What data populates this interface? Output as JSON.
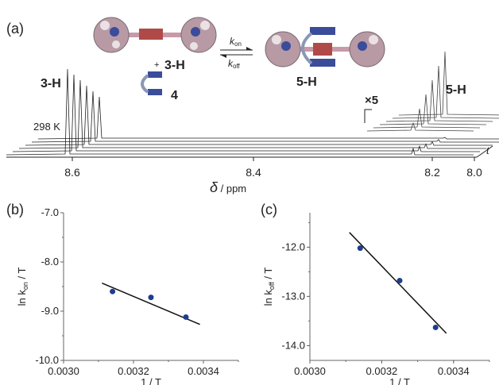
{
  "panel_a": {
    "label": "(a)",
    "compound_3h": "3-H",
    "compound_4": "4",
    "compound_5h": "5-H",
    "plus": "+",
    "k_on": "k",
    "k_on_sub": "on",
    "k_off": "k",
    "k_off_sub": "off",
    "left_spectrum_label": "3-H",
    "right_spectrum_label": "5-H",
    "temperature": "298 K",
    "zoom_label": "×5",
    "t_label": "t",
    "x_axis_label_symbol": "δ",
    "x_axis_label_unit": " / ppm",
    "x_ticks": [
      "8.6",
      "8.4",
      "8.2",
      "8.0"
    ],
    "colors": {
      "blue": "#3a4c9a",
      "red": "#b04a48",
      "gray": "#888888",
      "pink": "#c89aa8"
    }
  },
  "chart_data": [
    {
      "type": "scatter",
      "panel": "(b)",
      "x": [
        0.00314,
        0.00325,
        0.00335
      ],
      "y": [
        -8.6,
        -8.72,
        -9.12
      ],
      "fit_line": {
        "x": [
          0.00311,
          0.00339
        ],
        "y": [
          -8.43,
          -9.27
        ]
      },
      "xlim": [
        0.003,
        0.0035
      ],
      "ylim": [
        -10.0,
        -7.0
      ],
      "xticks": [
        "0.0030",
        "0.0032",
        "0.0034"
      ],
      "yticks": [
        "-7.0",
        "-8.0",
        "-9.0",
        "-10.0"
      ],
      "xlabel": "1 / T",
      "ylabel": "ln k",
      "ylabel_sub": "on",
      "ylabel_tail": " / T",
      "marker_color": "#1f3d8f"
    },
    {
      "type": "scatter",
      "panel": "(c)",
      "x": [
        0.00314,
        0.00325,
        0.00335
      ],
      "y": [
        -12.02,
        -12.68,
        -13.63
      ],
      "fit_line": {
        "x": [
          0.00311,
          0.00338
        ],
        "y": [
          -11.7,
          -13.75
        ]
      },
      "xlim": [
        0.003,
        0.0035
      ],
      "ylim": [
        -14.3,
        -11.3
      ],
      "xticks": [
        "0.0030",
        "0.0032",
        "0.0034"
      ],
      "yticks": [
        "-12.0",
        "-13.0",
        "-14.0"
      ],
      "xlabel": "1 / T",
      "ylabel": "ln k",
      "ylabel_sub": "off",
      "ylabel_tail": " / T",
      "marker_color": "#1f3d8f"
    }
  ]
}
